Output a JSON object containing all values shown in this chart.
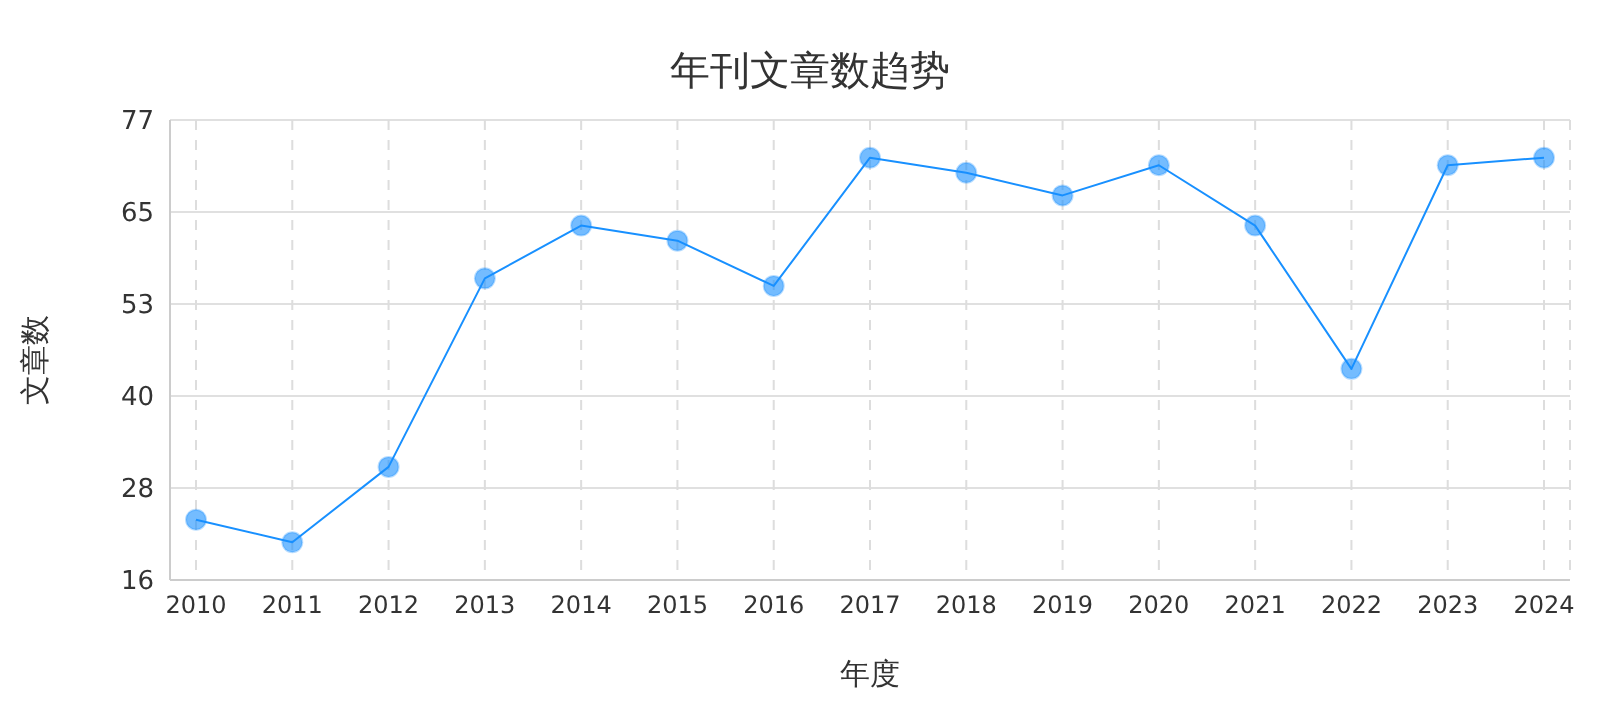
{
  "chart_data": {
    "type": "line",
    "title": "年刊文章数趋势",
    "xlabel": "年度",
    "ylabel": "文章数",
    "categories": [
      "2010",
      "2011",
      "2012",
      "2013",
      "2014",
      "2015",
      "2016",
      "2017",
      "2018",
      "2019",
      "2020",
      "2021",
      "2022",
      "2023",
      "2024"
    ],
    "series": [
      {
        "color": "#1890ff",
        "values": [
          24,
          21,
          31,
          56,
          63,
          61,
          55,
          72,
          70,
          67,
          71,
          63,
          44,
          71,
          72
        ]
      }
    ],
    "ylim": [
      16,
      77
    ],
    "yticks": [
      16,
      {
        "value": 28.2,
        "label": "28"
      },
      {
        "value": 40.4,
        "label": "40"
      },
      {
        "value": 52.6,
        "label": "53"
      },
      {
        "value": 64.8,
        "label": "65"
      },
      77
    ],
    "grid": true,
    "marker": "circle",
    "line_style": "solid"
  }
}
